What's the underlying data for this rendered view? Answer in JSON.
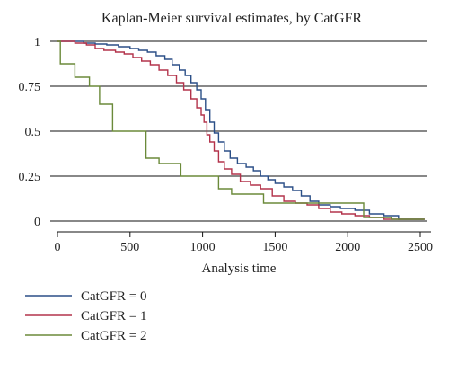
{
  "chart_data": {
    "type": "line",
    "step": true,
    "title": "Kaplan-Meier survival estimates, by CatGFR",
    "xlabel": "Analysis time",
    "ylabel": "",
    "xlim": [
      0,
      2500
    ],
    "ylim": [
      0,
      1
    ],
    "xticks": [
      0,
      500,
      1000,
      1500,
      2000,
      2500
    ],
    "yticks": [
      0,
      0.25,
      0.5,
      0.75,
      1
    ],
    "ytick_labels": [
      "0",
      "0.25",
      "0.5",
      "0.75",
      "1"
    ],
    "grid": "horizontal",
    "legend_position": "bottom-left",
    "series": [
      {
        "name": "CatGFR = 0",
        "color": "#2b4f87",
        "points": [
          [
            0,
            1
          ],
          [
            100,
            1
          ],
          [
            180,
            0.99
          ],
          [
            260,
            0.985
          ],
          [
            340,
            0.98
          ],
          [
            420,
            0.97
          ],
          [
            500,
            0.96
          ],
          [
            560,
            0.95
          ],
          [
            620,
            0.94
          ],
          [
            680,
            0.92
          ],
          [
            740,
            0.9
          ],
          [
            790,
            0.87
          ],
          [
            840,
            0.84
          ],
          [
            880,
            0.81
          ],
          [
            920,
            0.77
          ],
          [
            960,
            0.73
          ],
          [
            990,
            0.68
          ],
          [
            1020,
            0.62
          ],
          [
            1050,
            0.55
          ],
          [
            1080,
            0.49
          ],
          [
            1110,
            0.44
          ],
          [
            1150,
            0.39
          ],
          [
            1190,
            0.35
          ],
          [
            1240,
            0.32
          ],
          [
            1300,
            0.3
          ],
          [
            1350,
            0.28
          ],
          [
            1400,
            0.25
          ],
          [
            1450,
            0.23
          ],
          [
            1500,
            0.21
          ],
          [
            1560,
            0.19
          ],
          [
            1620,
            0.17
          ],
          [
            1680,
            0.14
          ],
          [
            1740,
            0.11
          ],
          [
            1800,
            0.09
          ],
          [
            1880,
            0.08
          ],
          [
            1950,
            0.07
          ],
          [
            2050,
            0.06
          ],
          [
            2150,
            0.04
          ],
          [
            2250,
            0.03
          ],
          [
            2350,
            0.01
          ],
          [
            2450,
            0.01
          ],
          [
            2530,
            0.01
          ]
        ]
      },
      {
        "name": "CatGFR = 1",
        "color": "#b3334b",
        "points": [
          [
            0,
            1
          ],
          [
            120,
            0.99
          ],
          [
            200,
            0.98
          ],
          [
            260,
            0.96
          ],
          [
            320,
            0.95
          ],
          [
            400,
            0.94
          ],
          [
            460,
            0.93
          ],
          [
            520,
            0.91
          ],
          [
            580,
            0.89
          ],
          [
            640,
            0.87
          ],
          [
            700,
            0.84
          ],
          [
            760,
            0.81
          ],
          [
            820,
            0.77
          ],
          [
            870,
            0.73
          ],
          [
            920,
            0.68
          ],
          [
            960,
            0.63
          ],
          [
            990,
            0.59
          ],
          [
            1010,
            0.55
          ],
          [
            1030,
            0.48
          ],
          [
            1050,
            0.44
          ],
          [
            1080,
            0.39
          ],
          [
            1110,
            0.33
          ],
          [
            1150,
            0.29
          ],
          [
            1200,
            0.26
          ],
          [
            1260,
            0.22
          ],
          [
            1330,
            0.2
          ],
          [
            1400,
            0.18
          ],
          [
            1480,
            0.14
          ],
          [
            1560,
            0.11
          ],
          [
            1640,
            0.1
          ],
          [
            1720,
            0.09
          ],
          [
            1800,
            0.07
          ],
          [
            1880,
            0.05
          ],
          [
            1960,
            0.04
          ],
          [
            2050,
            0.03
          ],
          [
            2150,
            0.02
          ],
          [
            2250,
            0.01
          ],
          [
            2400,
            0.01
          ],
          [
            2530,
            0.01
          ]
        ]
      },
      {
        "name": "CatGFR = 2",
        "color": "#6b8a3a",
        "points": [
          [
            0,
            1
          ],
          [
            20,
            0.875
          ],
          [
            120,
            0.875
          ],
          [
            120,
            0.8
          ],
          [
            220,
            0.8
          ],
          [
            220,
            0.75
          ],
          [
            290,
            0.75
          ],
          [
            290,
            0.65
          ],
          [
            380,
            0.65
          ],
          [
            380,
            0.5
          ],
          [
            610,
            0.5
          ],
          [
            610,
            0.35
          ],
          [
            700,
            0.35
          ],
          [
            700,
            0.32
          ],
          [
            850,
            0.32
          ],
          [
            850,
            0.25
          ],
          [
            1110,
            0.25
          ],
          [
            1110,
            0.18
          ],
          [
            1200,
            0.18
          ],
          [
            1200,
            0.15
          ],
          [
            1420,
            0.15
          ],
          [
            1420,
            0.1
          ],
          [
            2110,
            0.1
          ],
          [
            2110,
            0.02
          ],
          [
            2300,
            0.02
          ],
          [
            2300,
            0.01
          ],
          [
            2530,
            0.01
          ]
        ]
      }
    ]
  }
}
